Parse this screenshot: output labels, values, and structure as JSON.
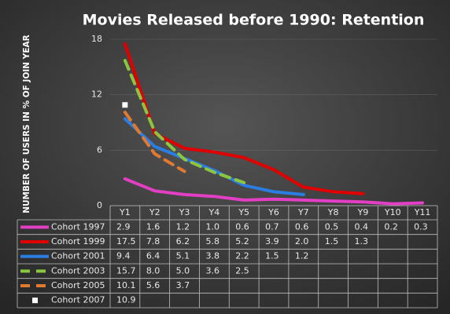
{
  "chart_data": {
    "type": "line",
    "title": "Movies Released before 1990: Retention",
    "ylabel": "NUMBER OF USERS IN % OF JOIN YEAR",
    "categories": [
      "Y1",
      "Y2",
      "Y3",
      "Y4",
      "Y5",
      "Y6",
      "Y7",
      "Y8",
      "Y9",
      "Y10",
      "Y11"
    ],
    "ylim": [
      0,
      18
    ],
    "yticks": [
      0,
      6,
      12,
      18
    ],
    "grid": true,
    "series": [
      {
        "name": "Cohort 1997",
        "color": "#e33fc4",
        "dashed": false,
        "values": [
          2.9,
          1.6,
          1.2,
          1.0,
          0.6,
          0.7,
          0.6,
          0.5,
          0.4,
          0.2,
          0.3
        ],
        "value_labels": [
          "2.9",
          "1.6",
          "1.2",
          "1.0",
          "0.6",
          "0.7",
          "0.6",
          "0.5",
          "0.4",
          "0.2",
          "0.3"
        ]
      },
      {
        "name": "Cohort 1999",
        "color": "#e00000",
        "dashed": false,
        "values": [
          17.5,
          7.8,
          6.2,
          5.8,
          5.2,
          3.9,
          2.0,
          1.5,
          1.3,
          null,
          null
        ],
        "value_labels": [
          "17.5",
          "7.8",
          "6.2",
          "5.8",
          "5.2",
          "3.9",
          "2.0",
          "1.5",
          "1.3",
          null,
          null
        ]
      },
      {
        "name": "Cohort 2001",
        "color": "#2b7de1",
        "dashed": false,
        "values": [
          9.4,
          6.4,
          5.1,
          3.8,
          2.2,
          1.5,
          1.2,
          null,
          null,
          null,
          null
        ],
        "value_labels": [
          "9.4",
          "6.4",
          "5.1",
          "3.8",
          "2.2",
          "1.5",
          "1.2",
          null,
          null,
          null,
          null
        ]
      },
      {
        "name": "Cohort 2003",
        "color": "#8cc63f",
        "dashed": true,
        "values": [
          15.7,
          8.0,
          5.0,
          3.6,
          2.5,
          null,
          null,
          null,
          null,
          null,
          null
        ],
        "value_labels": [
          "15.7",
          "8.0",
          "5.0",
          "3.6",
          "2.5",
          null,
          null,
          null,
          null,
          null,
          null
        ]
      },
      {
        "name": "Cohort 2005",
        "color": "#e07a30",
        "dashed": true,
        "values": [
          10.1,
          5.6,
          3.7,
          null,
          null,
          null,
          null,
          null,
          null,
          null,
          null
        ],
        "value_labels": [
          "10.1",
          "5.6",
          "3.7",
          null,
          null,
          null,
          null,
          null,
          null,
          null,
          null
        ]
      },
      {
        "name": "Cohort 2007",
        "color": "#ffffff",
        "marker": "square",
        "values": [
          10.9,
          null,
          null,
          null,
          null,
          null,
          null,
          null,
          null,
          null,
          null
        ],
        "value_labels": [
          "10.9",
          null,
          null,
          null,
          null,
          null,
          null,
          null,
          null,
          null,
          null
        ]
      }
    ]
  }
}
